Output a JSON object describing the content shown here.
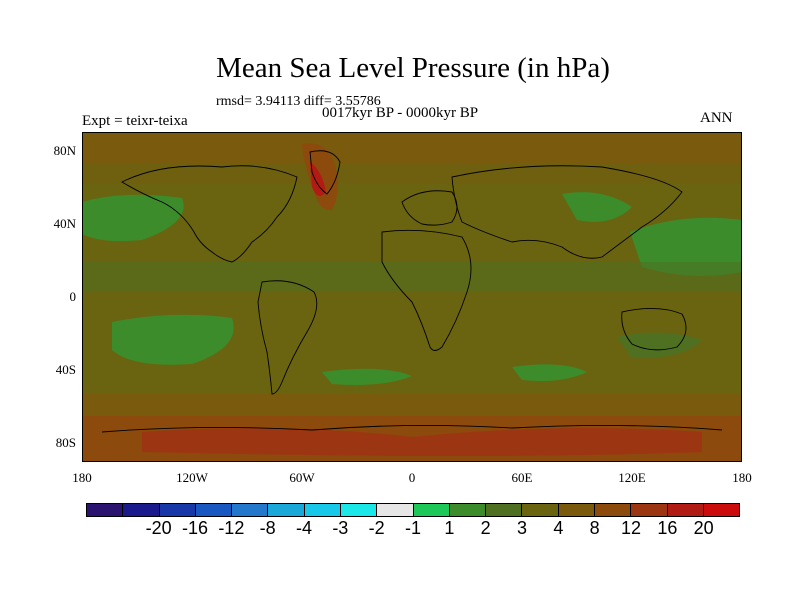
{
  "title": "Mean Sea Level Pressure (in hPa)",
  "stats": "rmsd= 3.94113 diff= 3.55786",
  "period": "0017kyr BP - 0000kyr BP",
  "expt": "Expt = teixr-teixa",
  "season": "ANN",
  "lat_labels": [
    "80N",
    "40N",
    "0",
    "40S",
    "80S"
  ],
  "lon_labels": [
    "180",
    "120W",
    "60W",
    "0",
    "60E",
    "120E",
    "180"
  ],
  "colorbar": {
    "colors": [
      "#2a1470",
      "#1a1a8c",
      "#1838a8",
      "#1858c0",
      "#2478cc",
      "#1aa8d8",
      "#18c8e8",
      "#1ae8e8",
      "#e6e6e6",
      "#1ec858",
      "#3c8c2c",
      "#4e7020",
      "#6a6410",
      "#7a5a0c",
      "#8c4a0c",
      "#9c3612",
      "#b01c14",
      "#cc0c0c"
    ],
    "labels": [
      "-20",
      "-16",
      "-12",
      "-8",
      "-4",
      "-3",
      "-2",
      "-1",
      "1",
      "2",
      "3",
      "4",
      "8",
      "12",
      "16",
      "20"
    ]
  }
}
